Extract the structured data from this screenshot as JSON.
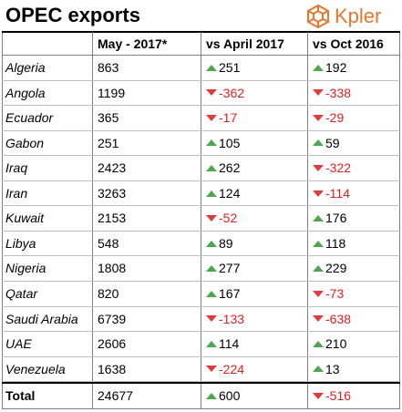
{
  "title": "OPEC exports",
  "brand": {
    "name": "Kpler",
    "icon": "kpler-logo-icon",
    "color": "#e8772e"
  },
  "colors": {
    "up_arrow": "#4ca84c",
    "down_arrow": "#e03c3c",
    "negative_text": "#e02020"
  },
  "headers": {
    "value": "May - 2017*",
    "change1": "vs April 2017",
    "change2": "vs Oct 2016"
  },
  "rows": [
    {
      "country": "Algeria",
      "value": "863",
      "change1": {
        "text": "251",
        "dir": "up"
      },
      "change2": {
        "text": "192",
        "dir": "up"
      }
    },
    {
      "country": "Angola",
      "value": "1199",
      "change1": {
        "text": "-362",
        "dir": "down"
      },
      "change2": {
        "text": "-338",
        "dir": "down"
      }
    },
    {
      "country": "Ecuador",
      "value": "365",
      "change1": {
        "text": "-17",
        "dir": "down"
      },
      "change2": {
        "text": "-29",
        "dir": "down"
      }
    },
    {
      "country": "Gabon",
      "value": "251",
      "change1": {
        "text": "105",
        "dir": "up"
      },
      "change2": {
        "text": "59",
        "dir": "up"
      }
    },
    {
      "country": "Iraq",
      "value": "2423",
      "change1": {
        "text": "262",
        "dir": "up"
      },
      "change2": {
        "text": "-322",
        "dir": "down"
      }
    },
    {
      "country": "Iran",
      "value": "3263",
      "change1": {
        "text": "124",
        "dir": "up"
      },
      "change2": {
        "text": "-114",
        "dir": "down"
      }
    },
    {
      "country": "Kuwait",
      "value": "2153",
      "change1": {
        "text": "-52",
        "dir": "down"
      },
      "change2": {
        "text": "176",
        "dir": "up"
      }
    },
    {
      "country": "Libya",
      "value": "548",
      "change1": {
        "text": "89",
        "dir": "up"
      },
      "change2": {
        "text": "118",
        "dir": "up"
      }
    },
    {
      "country": "Nigeria",
      "value": "1808",
      "change1": {
        "text": "277",
        "dir": "up"
      },
      "change2": {
        "text": "229",
        "dir": "up"
      }
    },
    {
      "country": "Qatar",
      "value": "820",
      "change1": {
        "text": "167",
        "dir": "up"
      },
      "change2": {
        "text": "-73",
        "dir": "down"
      }
    },
    {
      "country": "Saudi Arabia",
      "value": "6739",
      "change1": {
        "text": "-133",
        "dir": "down"
      },
      "change2": {
        "text": "-638",
        "dir": "down"
      }
    },
    {
      "country": "UAE",
      "value": "2606",
      "change1": {
        "text": "114",
        "dir": "up"
      },
      "change2": {
        "text": "210",
        "dir": "up"
      }
    },
    {
      "country": "Venezuela",
      "value": "1638",
      "change1": {
        "text": "-224",
        "dir": "down"
      },
      "change2": {
        "text": "13",
        "dir": "up"
      }
    }
  ],
  "total": {
    "label": "Total",
    "value": "24677",
    "change1": {
      "text": "600",
      "dir": "up"
    },
    "change2": {
      "text": "-516",
      "dir": "down"
    }
  }
}
